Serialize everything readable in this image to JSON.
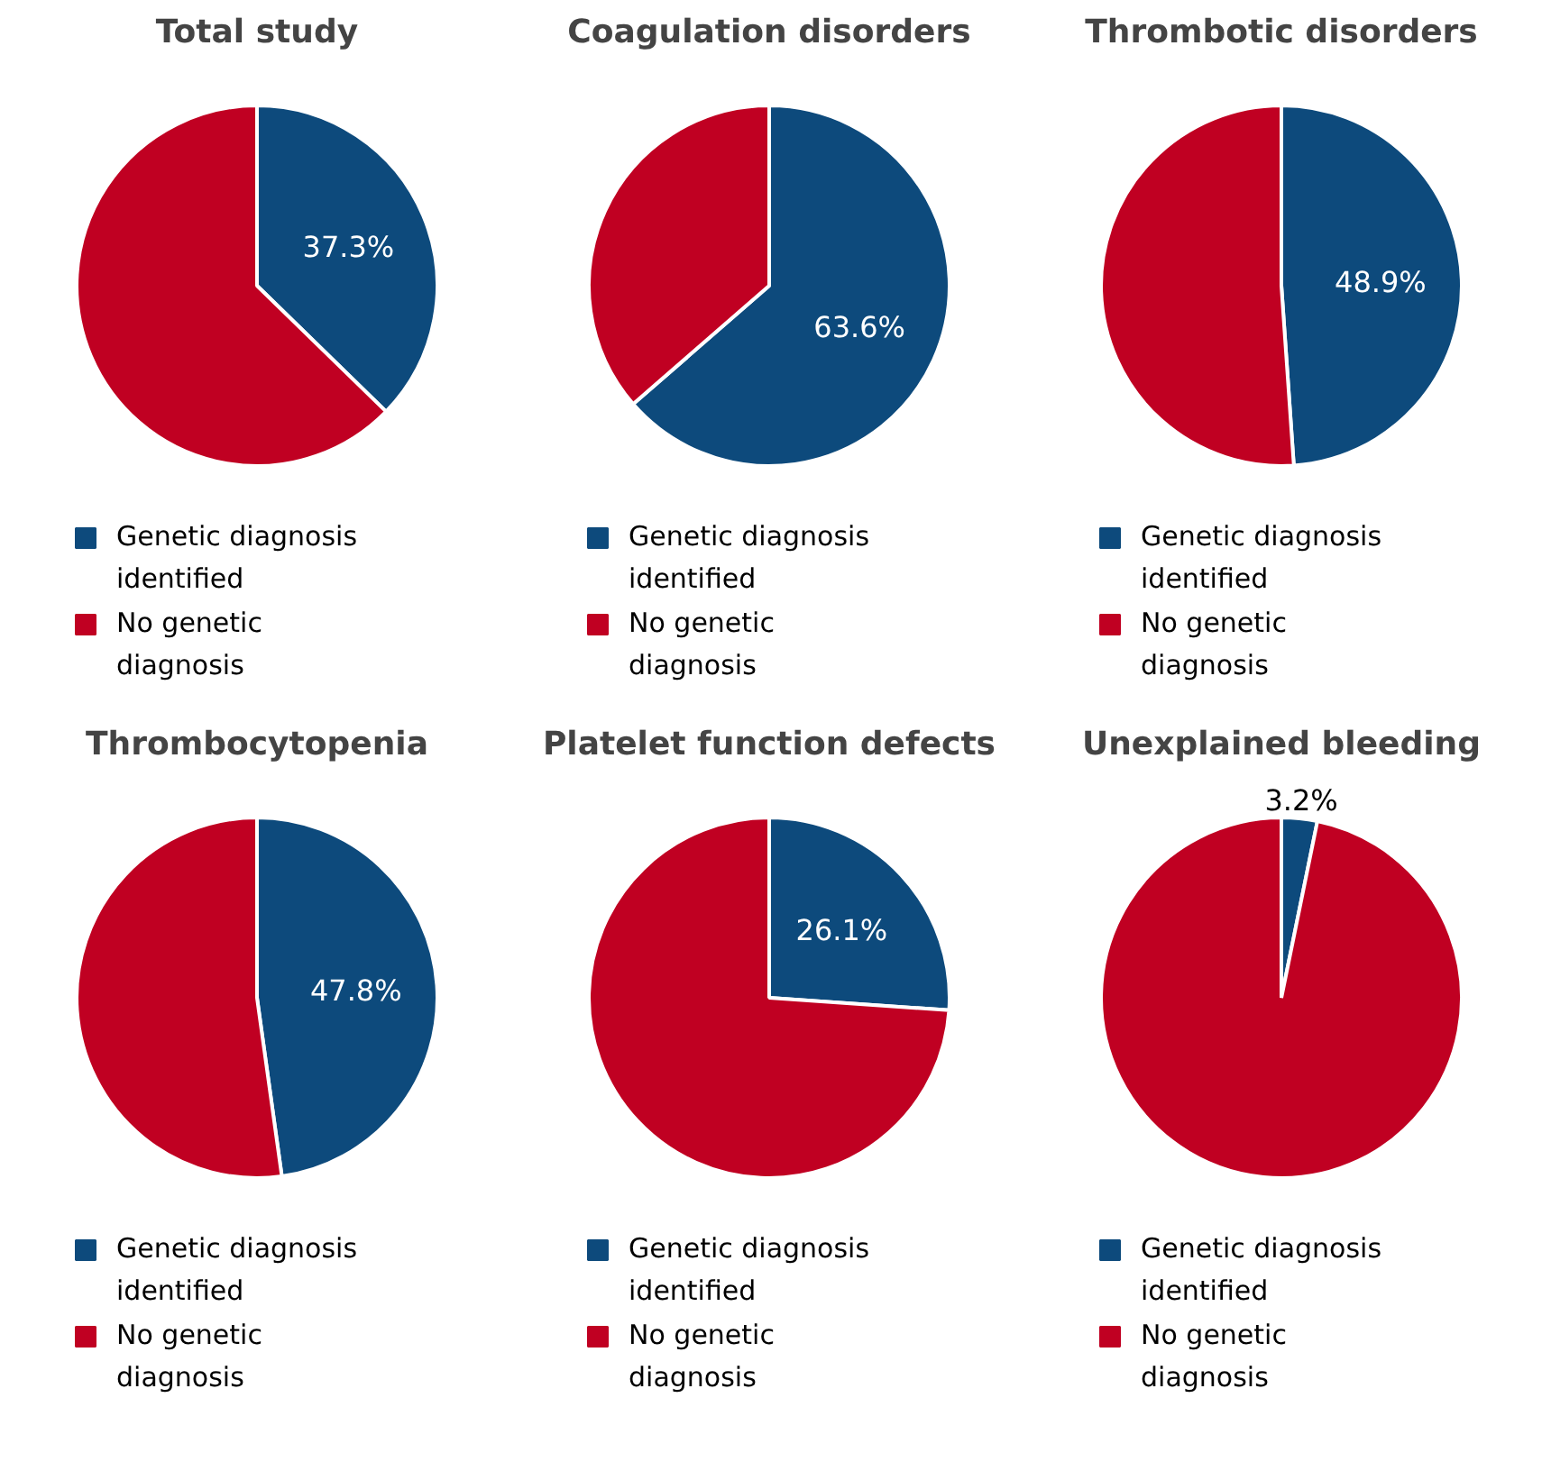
{
  "chart_data": [
    {
      "type": "pie",
      "title": "Total study",
      "categories": [
        "Genetic diagnosis identified",
        "No genetic diagnosis"
      ],
      "values": [
        37.3,
        62.7
      ],
      "colors": [
        "#0d4a7c",
        "#c00022"
      ],
      "value_labels": [
        "37.3%",
        null
      ],
      "legend": "bottom"
    },
    {
      "type": "pie",
      "title": "Coagulation disorders",
      "categories": [
        "Genetic diagnosis identified",
        "No genetic diagnosis"
      ],
      "values": [
        63.6,
        36.4
      ],
      "colors": [
        "#0d4a7c",
        "#c00022"
      ],
      "value_labels": [
        "63.6%",
        null
      ],
      "legend": "bottom"
    },
    {
      "type": "pie",
      "title": "Thrombotic disorders",
      "categories": [
        "Genetic diagnosis identified",
        "No genetic diagnosis"
      ],
      "values": [
        48.9,
        51.1
      ],
      "colors": [
        "#0d4a7c",
        "#c00022"
      ],
      "value_labels": [
        "48.9%",
        null
      ],
      "legend": "bottom"
    },
    {
      "type": "pie",
      "title": "Thrombocytopenia",
      "categories": [
        "Genetic diagnosis identified",
        "No genetic diagnosis"
      ],
      "values": [
        47.8,
        52.2
      ],
      "colors": [
        "#0d4a7c",
        "#c00022"
      ],
      "value_labels": [
        "47.8%",
        null
      ],
      "legend": "bottom"
    },
    {
      "type": "pie",
      "title": "Platelet function defects",
      "categories": [
        "Genetic diagnosis identified",
        "No genetic diagnosis"
      ],
      "values": [
        26.1,
        73.9
      ],
      "colors": [
        "#0d4a7c",
        "#c00022"
      ],
      "value_labels": [
        "26.1%",
        null
      ],
      "legend": "bottom"
    },
    {
      "type": "pie",
      "title": "Unexplained bleeding",
      "categories": [
        "Genetic diagnosis identified",
        "No genetic diagnosis"
      ],
      "values": [
        3.2,
        96.8
      ],
      "colors": [
        "#0d4a7c",
        "#c00022"
      ],
      "value_labels": [
        "3.2%",
        null
      ],
      "legend": "bottom"
    }
  ]
}
